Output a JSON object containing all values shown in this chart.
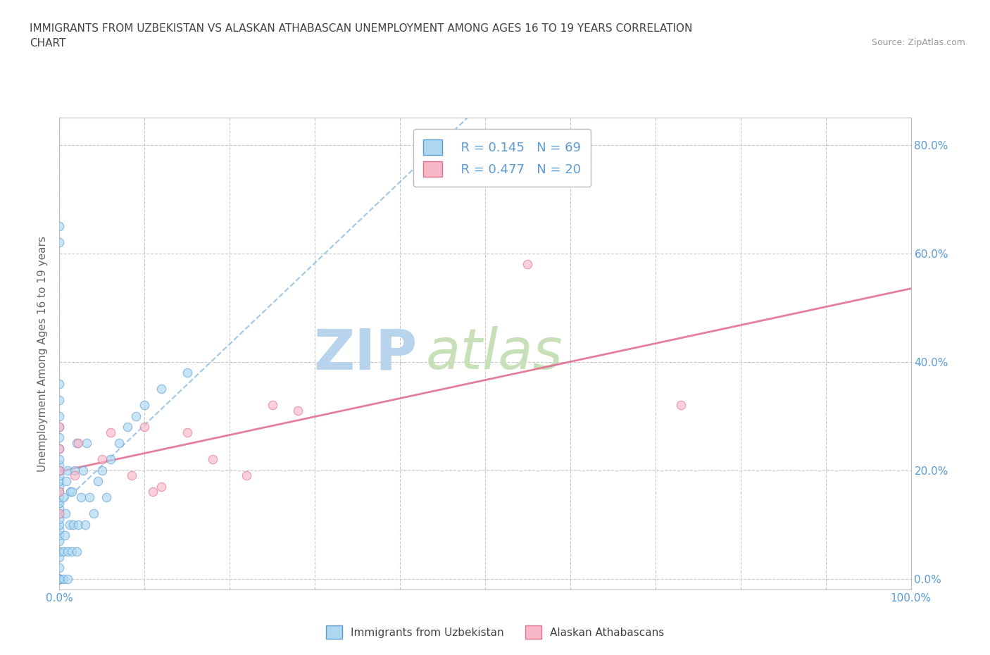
{
  "title_line1": "IMMIGRANTS FROM UZBEKISTAN VS ALASKAN ATHABASCAN UNEMPLOYMENT AMONG AGES 16 TO 19 YEARS CORRELATION",
  "title_line2": "CHART",
  "source_text": "Source: ZipAtlas.com",
  "ylabel": "Unemployment Among Ages 16 to 19 years",
  "xlim": [
    0.0,
    1.0
  ],
  "ylim": [
    -0.02,
    0.85
  ],
  "x_ticks": [
    0.0,
    0.1,
    0.2,
    0.3,
    0.4,
    0.5,
    0.6,
    0.7,
    0.8,
    0.9,
    1.0
  ],
  "x_tick_labels": [
    "0.0%",
    "",
    "",
    "",
    "",
    "",
    "",
    "",
    "",
    "",
    "100.0%"
  ],
  "y_ticks": [
    0.0,
    0.2,
    0.4,
    0.6,
    0.8
  ],
  "y_tick_labels": [
    "0.0%",
    "20.0%",
    "40.0%",
    "60.0%",
    "80.0%"
  ],
  "uzbekistan_color": "#add8f0",
  "uzbekistan_color_edge": "#5b9bd5",
  "athabascan_color": "#f9b8c8",
  "athabascan_color_edge": "#e07090",
  "trend_uzbekistan_color": "#7ab0d8",
  "trend_athabascan_color": "#e07090",
  "watermark_text1": "ZIP",
  "watermark_text2": "atlas",
  "watermark_color1": "#b8d4ec",
  "watermark_color2": "#c8e0b8",
  "legend_r1": "R = 0.145",
  "legend_n1": "N = 69",
  "legend_r2": "R = 0.477",
  "legend_n2": "N = 20",
  "uzbekistan_x": [
    0.0,
    0.0,
    0.0,
    0.0,
    0.0,
    0.0,
    0.0,
    0.0,
    0.0,
    0.0,
    0.0,
    0.0,
    0.0,
    0.0,
    0.0,
    0.0,
    0.0,
    0.0,
    0.0,
    0.0,
    0.0,
    0.0,
    0.0,
    0.0,
    0.0,
    0.0,
    0.0,
    0.0,
    0.0,
    0.0,
    0.0,
    0.0,
    0.0,
    0.0,
    0.0,
    0.005,
    0.005,
    0.005,
    0.006,
    0.007,
    0.008,
    0.01,
    0.01,
    0.01,
    0.012,
    0.013,
    0.015,
    0.015,
    0.016,
    0.018,
    0.02,
    0.02,
    0.022,
    0.025,
    0.028,
    0.03,
    0.032,
    0.035,
    0.04,
    0.045,
    0.05,
    0.055,
    0.06,
    0.07,
    0.08,
    0.09,
    0.1,
    0.12,
    0.15
  ],
  "uzbekistan_y": [
    0.0,
    0.0,
    0.0,
    0.0,
    0.0,
    0.0,
    0.0,
    0.0,
    0.02,
    0.04,
    0.05,
    0.07,
    0.08,
    0.09,
    0.1,
    0.11,
    0.12,
    0.13,
    0.14,
    0.15,
    0.16,
    0.17,
    0.18,
    0.19,
    0.2,
    0.21,
    0.22,
    0.24,
    0.26,
    0.28,
    0.3,
    0.33,
    0.36,
    0.62,
    0.65,
    0.0,
    0.05,
    0.15,
    0.08,
    0.12,
    0.18,
    0.0,
    0.05,
    0.2,
    0.1,
    0.16,
    0.05,
    0.16,
    0.1,
    0.2,
    0.05,
    0.25,
    0.1,
    0.15,
    0.2,
    0.1,
    0.25,
    0.15,
    0.12,
    0.18,
    0.2,
    0.15,
    0.22,
    0.25,
    0.28,
    0.3,
    0.32,
    0.35,
    0.38
  ],
  "athabascan_x": [
    0.0,
    0.0,
    0.0,
    0.0,
    0.0,
    0.018,
    0.022,
    0.05,
    0.06,
    0.085,
    0.1,
    0.11,
    0.12,
    0.15,
    0.18,
    0.22,
    0.25,
    0.28,
    0.55,
    0.73
  ],
  "athabascan_y": [
    0.12,
    0.16,
    0.2,
    0.24,
    0.28,
    0.19,
    0.25,
    0.22,
    0.27,
    0.19,
    0.28,
    0.16,
    0.17,
    0.27,
    0.22,
    0.19,
    0.32,
    0.31,
    0.58,
    0.32
  ],
  "grid_style": "dashed",
  "grid_color": "#c8c8c8",
  "dot_size": 80,
  "dot_alpha": 0.65,
  "title_color": "#444444",
  "tick_label_color": "#5b9bd5",
  "legend_text_color": "#5b9bd5",
  "axis_color": "#bbbbbb",
  "ylabel_color": "#666666"
}
